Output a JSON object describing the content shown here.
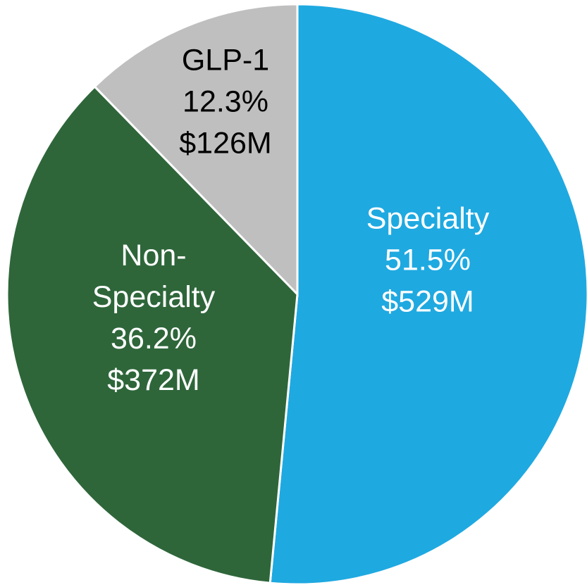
{
  "chart_data": {
    "type": "pie",
    "categories": [
      "Specialty",
      "Non-Specialty",
      "GLP-1"
    ],
    "values": [
      51.5,
      36.2,
      12.3
    ],
    "value_labels": [
      "51.5%",
      "36.2%",
      "12.3%"
    ],
    "amount_labels": [
      "$529M",
      "$372M",
      "$126M"
    ],
    "colors": [
      "#1fa9e1",
      "#2e663a",
      "#bfbfbf"
    ],
    "label_colors": [
      "#ffffff",
      "#ffffff",
      "#000000"
    ]
  }
}
